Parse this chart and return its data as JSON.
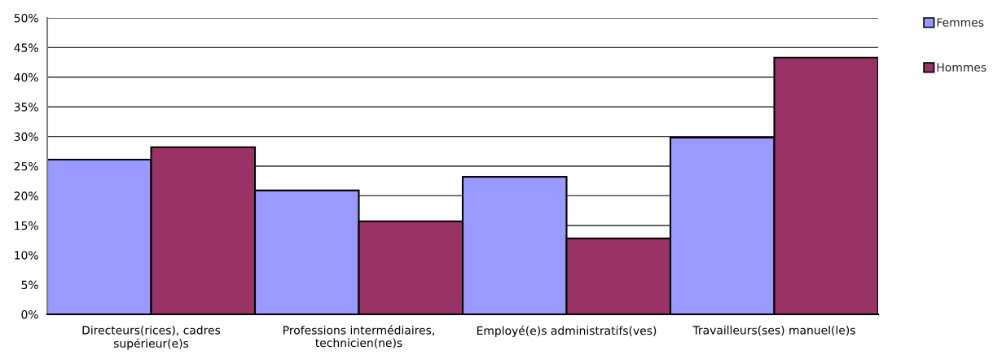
{
  "chart_data": {
    "type": "bar",
    "categories": [
      "Directeurs(rices), cadres\nsupérieur(e)s",
      "Professions intermédiaires,\ntechnicien(ne)s",
      "Employé(e)s administratifs(ves)",
      "Travailleurs(ses) manuel(le)s"
    ],
    "series": [
      {
        "name": "Femmes",
        "color": "#9999ff",
        "values": [
          26.1,
          20.9,
          23.2,
          29.8
        ]
      },
      {
        "name": "Hommes",
        "color": "#993366",
        "values": [
          28.2,
          15.7,
          12.8,
          43.3
        ]
      }
    ],
    "ylim": [
      0,
      50
    ],
    "yticks": [
      {
        "value": 0,
        "label": "0%"
      },
      {
        "value": 5,
        "label": "5%"
      },
      {
        "value": 10,
        "label": "10%"
      },
      {
        "value": 15,
        "label": "15%"
      },
      {
        "value": 20,
        "label": "20%"
      },
      {
        "value": 25,
        "label": "25%"
      },
      {
        "value": 30,
        "label": "30%"
      },
      {
        "value": 35,
        "label": "35%"
      },
      {
        "value": 40,
        "label": "40%"
      },
      {
        "value": 45,
        "label": "45%"
      },
      {
        "value": 50,
        "label": "50%"
      }
    ],
    "grid": "y",
    "legend": "top right"
  }
}
